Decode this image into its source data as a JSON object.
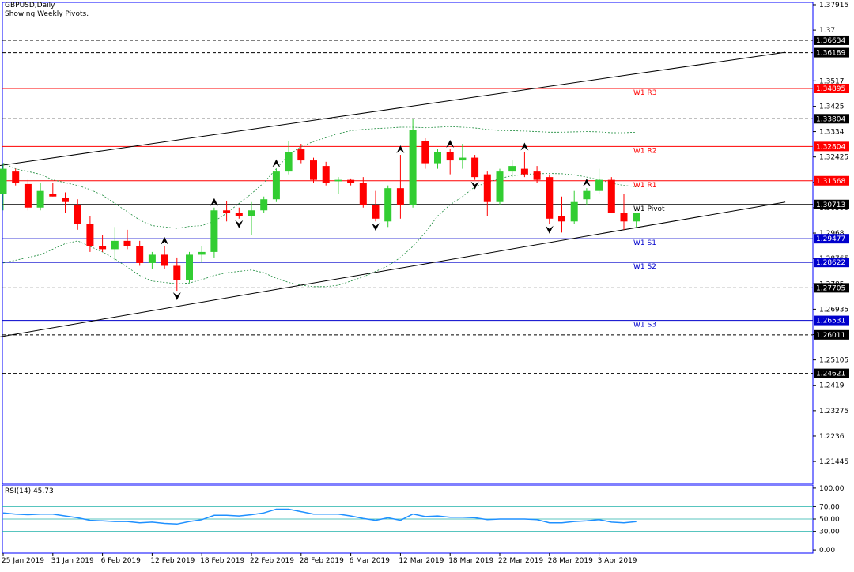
{
  "header": {
    "symbol": "GBPUSD,Daily",
    "subtitle": "Showing Weekly Pivots."
  },
  "rsi_label": "RSI(14) 45.73",
  "colors": {
    "bull": "#32cd32",
    "bear": "#ff0000",
    "pivot_red": "#ff0000",
    "pivot_blue": "#0000cc",
    "band": "#1a8a3a",
    "rsi_line": "#1e90ff",
    "rsi_level": "#20b2aa",
    "frame": "#0000ff"
  },
  "chart_data": [
    {
      "type": "candlestick",
      "title": "GBPUSD,Daily",
      "ylim": [
        1.2065,
        1.38
      ],
      "y_ticks": [
        1.37915,
        1.37,
        1.3517,
        1.3425,
        1.3334,
        1.32425,
        1.3151,
        1.30595,
        1.2968,
        1.28765,
        1.2785,
        1.26935,
        1.2602,
        1.25105,
        1.2419,
        1.23275,
        1.2236,
        1.21445
      ],
      "x_labels": [
        {
          "i": 0,
          "label": "25 Jan 2019"
        },
        {
          "i": 4,
          "label": "31 Jan 2019"
        },
        {
          "i": 8,
          "label": "6 Feb 2019"
        },
        {
          "i": 12,
          "label": "12 Feb 2019"
        },
        {
          "i": 16,
          "label": "18 Feb 2019"
        },
        {
          "i": 20,
          "label": "22 Feb 2019"
        },
        {
          "i": 24,
          "label": "28 Feb 2019"
        },
        {
          "i": 28,
          "label": "6 Mar 2019"
        },
        {
          "i": 32,
          "label": "12 Mar 2019"
        },
        {
          "i": 36,
          "label": "18 Mar 2019"
        },
        {
          "i": 40,
          "label": "22 Mar 2019"
        },
        {
          "i": 44,
          "label": "28 Mar 2019"
        },
        {
          "i": 48,
          "label": "3 Apr 2019"
        }
      ],
      "candles": [
        [
          1.311,
          1.322,
          1.305,
          1.32
        ],
        [
          1.319,
          1.32,
          1.314,
          1.315
        ],
        [
          1.3145,
          1.316,
          1.305,
          1.306
        ],
        [
          1.306,
          1.315,
          1.305,
          1.312
        ],
        [
          1.311,
          1.315,
          1.31,
          1.31
        ],
        [
          1.3095,
          1.3115,
          1.304,
          1.308
        ],
        [
          1.307,
          1.309,
          1.298,
          1.3
        ],
        [
          1.3,
          1.303,
          1.29,
          1.292
        ],
        [
          1.292,
          1.296,
          1.29,
          1.291
        ],
        [
          1.291,
          1.299,
          1.287,
          1.294
        ],
        [
          1.294,
          1.298,
          1.291,
          1.292
        ],
        [
          1.292,
          1.294,
          1.285,
          1.286
        ],
        [
          1.286,
          1.29,
          1.284,
          1.289
        ],
        [
          1.289,
          1.292,
          1.284,
          1.285
        ],
        [
          1.285,
          1.288,
          1.276,
          1.28
        ],
        [
          1.28,
          1.29,
          1.279,
          1.289
        ],
        [
          1.289,
          1.292,
          1.286,
          1.29
        ],
        [
          1.29,
          1.306,
          1.288,
          1.305
        ],
        [
          1.305,
          1.3085,
          1.301,
          1.304
        ],
        [
          1.304,
          1.306,
          1.302,
          1.303
        ],
        [
          1.303,
          1.308,
          1.296,
          1.305
        ],
        [
          1.305,
          1.31,
          1.304,
          1.309
        ],
        [
          1.309,
          1.32,
          1.308,
          1.319
        ],
        [
          1.319,
          1.33,
          1.318,
          1.326
        ],
        [
          1.327,
          1.329,
          1.322,
          1.323
        ],
        [
          1.323,
          1.324,
          1.315,
          1.316
        ],
        [
          1.321,
          1.3225,
          1.314,
          1.315
        ],
        [
          1.3155,
          1.317,
          1.311,
          1.316
        ],
        [
          1.316,
          1.3165,
          1.314,
          1.315
        ],
        [
          1.315,
          1.317,
          1.306,
          1.307
        ],
        [
          1.307,
          1.312,
          1.301,
          1.302
        ],
        [
          1.301,
          1.314,
          1.299,
          1.313
        ],
        [
          1.313,
          1.325,
          1.302,
          1.307
        ],
        [
          1.307,
          1.338,
          1.306,
          1.334
        ],
        [
          1.33,
          1.331,
          1.32,
          1.322
        ],
        [
          1.322,
          1.327,
          1.32,
          1.326
        ],
        [
          1.326,
          1.327,
          1.318,
          1.323
        ],
        [
          1.323,
          1.329,
          1.32,
          1.324
        ],
        [
          1.324,
          1.325,
          1.316,
          1.317
        ],
        [
          1.318,
          1.319,
          1.303,
          1.308
        ],
        [
          1.308,
          1.32,
          1.307,
          1.319
        ],
        [
          1.319,
          1.323,
          1.317,
          1.321
        ],
        [
          1.32,
          1.326,
          1.317,
          1.318
        ],
        [
          1.319,
          1.321,
          1.315,
          1.316
        ],
        [
          1.317,
          1.318,
          1.3,
          1.302
        ],
        [
          1.303,
          1.31,
          1.297,
          1.301
        ],
        [
          1.301,
          1.312,
          1.3,
          1.308
        ],
        [
          1.309,
          1.313,
          1.307,
          1.312
        ],
        [
          1.312,
          1.32,
          1.311,
          1.316
        ],
        [
          1.316,
          1.317,
          1.304,
          1.304
        ],
        [
          1.304,
          1.311,
          1.298,
          1.301
        ],
        [
          1.301,
          1.304,
          1.299,
          1.304
        ]
      ],
      "upper_band": [
        1.322,
        1.32,
        1.319,
        1.318,
        1.316,
        1.315,
        1.314,
        1.3125,
        1.3105,
        1.3075,
        1.3045,
        1.3015,
        1.2995,
        1.299,
        1.2985,
        1.2992,
        1.2995,
        1.301,
        1.304,
        1.3075,
        1.311,
        1.315,
        1.32,
        1.325,
        1.328,
        1.3298,
        1.3312,
        1.3327,
        1.3337,
        1.3342,
        1.3345,
        1.3347,
        1.335,
        1.335,
        1.3348,
        1.335,
        1.3352,
        1.335,
        1.3347,
        1.3342,
        1.3338,
        1.3337,
        1.3336,
        1.3334,
        1.3332,
        1.3332,
        1.3333,
        1.3334,
        1.3333,
        1.333,
        1.333,
        1.3332
      ],
      "lower_band": [
        1.286,
        1.287,
        1.288,
        1.289,
        1.291,
        1.293,
        1.294,
        1.292,
        1.29,
        1.2875,
        1.2845,
        1.2815,
        1.2795,
        1.279,
        1.2785,
        1.2788,
        1.28,
        1.2815,
        1.2825,
        1.283,
        1.2835,
        1.2825,
        1.2805,
        1.279,
        1.278,
        1.2775,
        1.2775,
        1.278,
        1.2795,
        1.281,
        1.283,
        1.285,
        1.288,
        1.292,
        1.297,
        1.303,
        1.307,
        1.31,
        1.3135,
        1.315,
        1.3165,
        1.3175,
        1.318,
        1.3182,
        1.3183,
        1.3182,
        1.3178,
        1.317,
        1.316,
        1.3148,
        1.314,
        1.3135
      ],
      "lower_band_note": "values shifted in render",
      "pivot_levels": [
        {
          "label": "W1 R3",
          "value": 1.34895,
          "price_label": "1.34895",
          "color": "red"
        },
        {
          "label": "W1 R2",
          "value": 1.32804,
          "price_label": "1.32804",
          "color": "red"
        },
        {
          "label": "W1 R1",
          "value": 1.31568,
          "price_label": "1.31568",
          "color": "red"
        },
        {
          "label": "W1 Pivot",
          "value": 1.30713,
          "price_label": "1.30713",
          "color": "black"
        },
        {
          "label": "W1 S1",
          "value": 1.29477,
          "price_label": "1.29477",
          "color": "blue"
        },
        {
          "label": "W1 S2",
          "value": 1.28622,
          "price_label": "1.28622",
          "color": "blue"
        },
        {
          "label": "W1 S3",
          "value": 1.26531,
          "price_label": "1.26531",
          "color": "blue"
        }
      ],
      "dashed_levels": [
        {
          "value": 1.36634,
          "price_label": "1.36634"
        },
        {
          "value": 1.36189,
          "price_label": "1.36189"
        },
        {
          "value": 1.33804,
          "price_label": "1.33804"
        },
        {
          "value": 1.27705,
          "price_label": "1.27705"
        },
        {
          "value": 1.26011,
          "price_label": "1.26011"
        },
        {
          "value": 1.24621,
          "price_label": "1.24621"
        }
      ],
      "trendlines": [
        {
          "from": [
            -0.5,
            1.321
          ],
          "to": [
            63.0,
            1.362
          ]
        },
        {
          "from": [
            -0.5,
            1.2592
          ],
          "to": [
            63.0,
            1.308
          ]
        }
      ],
      "fractals_up": [
        22,
        32,
        36,
        42,
        47,
        17,
        13
      ],
      "fractals_down": [
        14,
        19,
        30,
        38,
        44
      ]
    },
    {
      "type": "line",
      "title": "RSI(14) 45.73",
      "ylim": [
        -5,
        105
      ],
      "y_ticks": [
        100.0,
        70.0,
        50.0,
        30.0,
        0.0
      ],
      "levels": [
        70,
        50,
        30
      ],
      "values": [
        60,
        58,
        57,
        58,
        58,
        55,
        52,
        48,
        47,
        46,
        46,
        44,
        45,
        43,
        42,
        46,
        49,
        56,
        56,
        55,
        57,
        60,
        66,
        66,
        62,
        58,
        58,
        58,
        55,
        51,
        48,
        52,
        48,
        58,
        54,
        55,
        53,
        53,
        52,
        49,
        50,
        50,
        50,
        49,
        44,
        44,
        46,
        47,
        49,
        45,
        44,
        45.73
      ]
    }
  ]
}
